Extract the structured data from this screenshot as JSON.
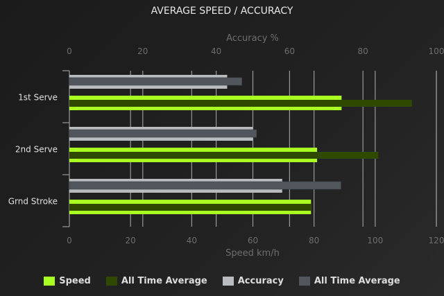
{
  "chart_data": {
    "type": "bar",
    "orientation": "horizontal",
    "title": "AVERAGE SPEED / ACCURACY",
    "categories": [
      "1st Serve",
      "2nd Serve",
      "Grnd Stroke"
    ],
    "x_bottom": {
      "label": "Speed km/h",
      "range": [
        0,
        120
      ],
      "ticks": [
        0,
        20,
        40,
        60,
        80,
        100,
        120
      ]
    },
    "x_top": {
      "label": "Accuracy %",
      "range": [
        0,
        100
      ],
      "ticks": [
        0,
        20,
        40,
        60,
        80,
        100
      ]
    },
    "grid": true,
    "legend_position": "bottom",
    "series": [
      {
        "name": "Speed",
        "axis": "bottom",
        "color": "#aaff22",
        "values": [
          89,
          81,
          79
        ]
      },
      {
        "name": "All Time Average",
        "axis": "bottom",
        "color": "#2f4a00",
        "values": [
          112,
          101,
          79
        ]
      },
      {
        "name": "Accuracy",
        "axis": "top",
        "color": "#b8bcbf",
        "values": [
          43,
          50,
          58
        ]
      },
      {
        "name": "All Time Average",
        "axis": "top",
        "color": "#51565c",
        "values": [
          47,
          51,
          74
        ]
      }
    ]
  }
}
